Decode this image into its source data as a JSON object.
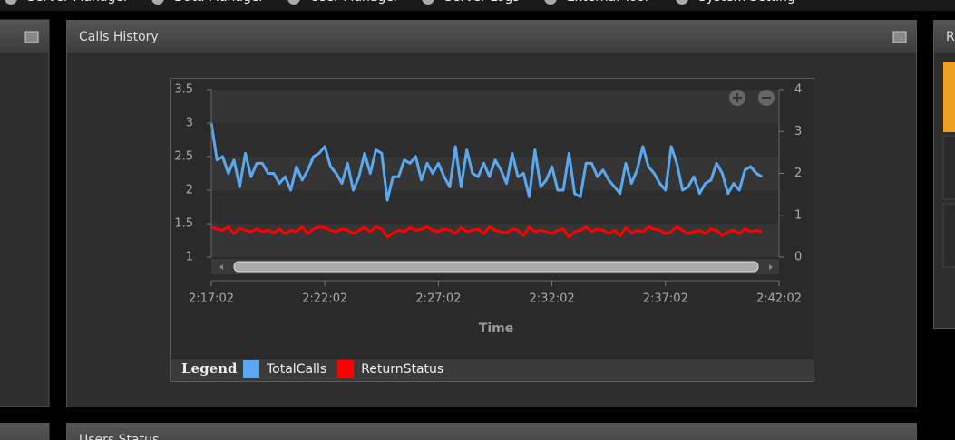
{
  "menu": [
    "Server Manager",
    "Data Manager",
    "User Manager",
    "Server Logs",
    "External Tool",
    "System Setting"
  ],
  "panels": {
    "main_title": "Calls History",
    "right_title": "R",
    "bottom_title": "Users Status"
  },
  "chart_data": {
    "type": "line",
    "xlabel": "Time",
    "legend_title": "Legend",
    "x": [
      "2:17:02",
      "2:17:17",
      "2:17:32",
      "2:17:47",
      "2:18:02",
      "2:18:17",
      "2:18:32",
      "2:18:47",
      "2:19:02",
      "2:19:17",
      "2:19:32",
      "2:19:47",
      "2:20:02",
      "2:20:17",
      "2:20:32",
      "2:20:47",
      "2:21:02",
      "2:21:17",
      "2:21:32",
      "2:21:47",
      "2:22:02",
      "2:22:17",
      "2:22:32",
      "2:22:47",
      "2:23:02",
      "2:23:17",
      "2:23:32",
      "2:23:47",
      "2:24:02",
      "2:24:17",
      "2:24:32",
      "2:24:47",
      "2:25:02",
      "2:25:17",
      "2:25:32",
      "2:25:47",
      "2:26:02",
      "2:26:17",
      "2:26:32",
      "2:26:47",
      "2:27:02",
      "2:27:17",
      "2:27:32",
      "2:27:47",
      "2:28:02",
      "2:28:17",
      "2:28:32",
      "2:28:47",
      "2:29:02",
      "2:29:17",
      "2:29:32",
      "2:29:47",
      "2:30:02",
      "2:30:17",
      "2:30:32",
      "2:30:47",
      "2:31:02",
      "2:31:17",
      "2:31:32",
      "2:31:47",
      "2:32:02",
      "2:32:17",
      "2:32:32",
      "2:32:47",
      "2:33:02",
      "2:33:17",
      "2:33:32",
      "2:33:47",
      "2:34:02",
      "2:34:17",
      "2:34:32",
      "2:34:47",
      "2:35:02",
      "2:35:17",
      "2:35:32",
      "2:35:47",
      "2:36:02",
      "2:36:17",
      "2:36:32",
      "2:36:47",
      "2:37:02",
      "2:37:17",
      "2:37:32",
      "2:37:47",
      "2:38:02",
      "2:38:17",
      "2:38:32",
      "2:38:47",
      "2:39:02",
      "2:39:17",
      "2:39:32",
      "2:39:47",
      "2:40:02",
      "2:40:17",
      "2:40:32",
      "2:40:47",
      "2:41:02",
      "2:41:17"
    ],
    "series": [
      {
        "name": "TotalCalls",
        "color": "#5aa9f0",
        "values": [
          3.0,
          2.45,
          2.5,
          2.25,
          2.45,
          2.05,
          2.55,
          2.2,
          2.4,
          2.4,
          2.25,
          2.25,
          2.1,
          2.2,
          2.0,
          2.35,
          2.15,
          2.3,
          2.5,
          2.55,
          2.65,
          2.35,
          2.25,
          2.1,
          2.4,
          2.0,
          2.2,
          2.55,
          2.25,
          2.6,
          2.55,
          1.85,
          2.2,
          2.2,
          2.45,
          2.4,
          2.5,
          2.15,
          2.4,
          2.25,
          2.4,
          2.2,
          2.05,
          2.65,
          2.05,
          2.6,
          2.25,
          2.2,
          2.4,
          2.2,
          2.45,
          2.3,
          2.1,
          2.55,
          2.2,
          2.25,
          1.9,
          2.6,
          2.05,
          2.15,
          2.35,
          2.0,
          2.0,
          2.55,
          1.95,
          1.9,
          2.4,
          2.4,
          2.2,
          2.3,
          2.15,
          2.05,
          1.95,
          2.4,
          2.1,
          2.3,
          2.65,
          2.35,
          2.25,
          2.1,
          2.0,
          2.65,
          2.4,
          2.0,
          2.05,
          2.2,
          1.95,
          2.1,
          2.15,
          2.4,
          2.25,
          1.95,
          2.1,
          2.0,
          2.3,
          2.35,
          2.25,
          2.2
        ]
      },
      {
        "name": "ReturnStatus",
        "color": "#ff0000",
        "values": [
          1.45,
          1.42,
          1.4,
          1.45,
          1.35,
          1.43,
          1.4,
          1.38,
          1.42,
          1.38,
          1.4,
          1.36,
          1.42,
          1.35,
          1.4,
          1.38,
          1.45,
          1.35,
          1.42,
          1.45,
          1.44,
          1.4,
          1.38,
          1.42,
          1.4,
          1.35,
          1.4,
          1.44,
          1.38,
          1.45,
          1.42,
          1.3,
          1.36,
          1.4,
          1.38,
          1.44,
          1.4,
          1.42,
          1.45,
          1.4,
          1.38,
          1.42,
          1.4,
          1.35,
          1.44,
          1.38,
          1.4,
          1.42,
          1.35,
          1.45,
          1.4,
          1.38,
          1.36,
          1.42,
          1.4,
          1.32,
          1.45,
          1.38,
          1.4,
          1.38,
          1.35,
          1.4,
          1.42,
          1.3,
          1.38,
          1.4,
          1.45,
          1.38,
          1.42,
          1.4,
          1.35,
          1.4,
          1.32,
          1.44,
          1.36,
          1.4,
          1.38,
          1.45,
          1.42,
          1.4,
          1.35,
          1.38,
          1.45,
          1.4,
          1.35,
          1.38,
          1.4,
          1.35,
          1.42,
          1.4,
          1.32,
          1.38,
          1.4,
          1.35,
          1.42,
          1.38,
          1.4,
          1.38
        ]
      }
    ],
    "xlim": [
      "2:17:02",
      "2:42:02"
    ],
    "xticks": [
      "2:17:02",
      "2:22:02",
      "2:27:02",
      "2:32:02",
      "2:37:02",
      "2:42:02"
    ],
    "ylim": [
      1,
      3.5
    ],
    "yticks": [
      1,
      1.5,
      2,
      2.5,
      3,
      3.5
    ],
    "y2lim": [
      0,
      4
    ],
    "y2ticks": [
      0,
      1,
      2,
      3,
      4
    ]
  }
}
